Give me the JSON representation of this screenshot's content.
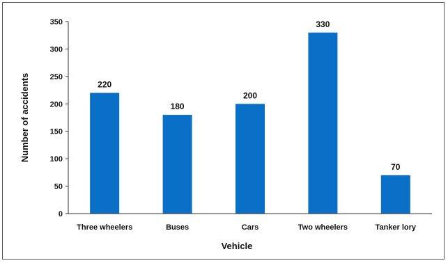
{
  "chart_data": {
    "type": "bar",
    "title": "",
    "xlabel": "Vehicle",
    "ylabel": "Number of accidents",
    "categories": [
      "Three wheelers",
      "Buses",
      "Cars",
      "Two wheelers",
      "Tanker lory"
    ],
    "values": [
      220,
      180,
      200,
      330,
      70
    ],
    "data_labels": [
      "220",
      "180",
      "200",
      "330",
      "70"
    ],
    "ylim": [
      0,
      350
    ],
    "yticks": [
      0,
      50,
      100,
      150,
      200,
      250,
      300,
      350
    ],
    "grid": false,
    "legend": "none",
    "bar_color": "#0a6fc6"
  }
}
